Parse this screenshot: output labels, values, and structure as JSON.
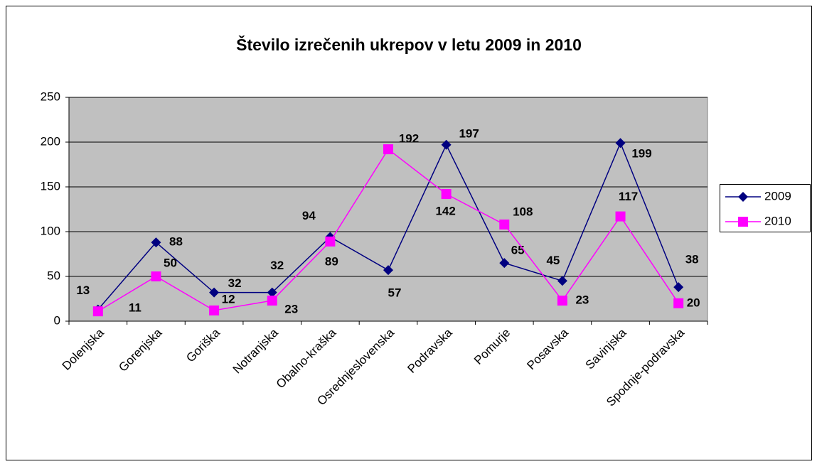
{
  "chart_data": {
    "type": "line",
    "title": "Število izrečenih ukrepov v letu 2009 in 2010",
    "categories": [
      "Dolenjska",
      "Gorenjska",
      "Goriška",
      "Notranjska",
      "Obalno-kraška",
      "Osrednjeslovenska",
      "Podravska",
      "Pomurje",
      "Posavska",
      "Savinjska",
      "Spodnje-podravska"
    ],
    "series": [
      {
        "name": "2009",
        "color": "#000080",
        "values": [
          13,
          88,
          32,
          32,
          94,
          57,
          197,
          65,
          45,
          199,
          38
        ]
      },
      {
        "name": "2010",
        "color": "#ff00ff",
        "values": [
          11,
          50,
          12,
          23,
          89,
          192,
          142,
          108,
          23,
          117,
          20
        ]
      }
    ],
    "ylim": [
      0,
      250
    ],
    "yticks": [
      0,
      50,
      100,
      150,
      200,
      250
    ],
    "grid": true,
    "legend": "right"
  }
}
